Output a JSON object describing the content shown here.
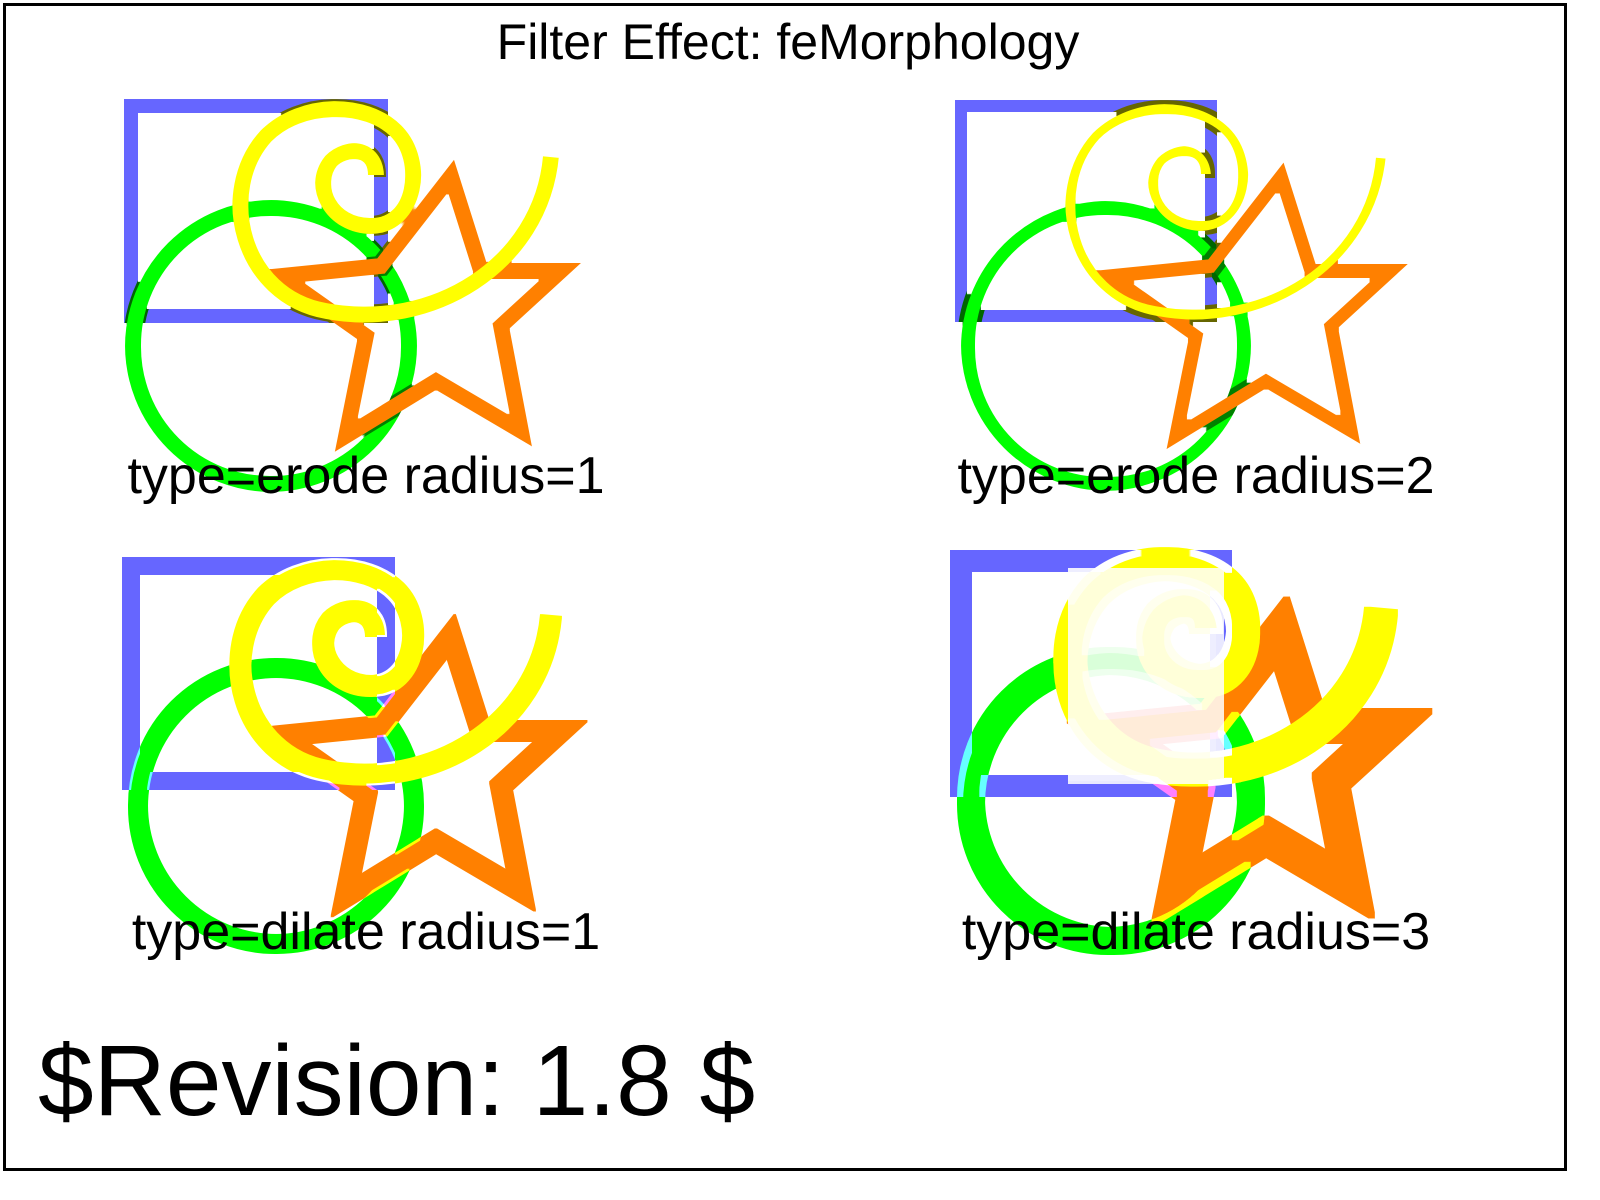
{
  "title": "Filter Effect: feMorphology",
  "panels": [
    {
      "id": "erode-1",
      "caption": "type=erode radius=1",
      "type": "erode",
      "radius": 1
    },
    {
      "id": "erode-2",
      "caption": "type=erode radius=2",
      "type": "erode",
      "radius": 2
    },
    {
      "id": "dilate-1",
      "caption": "type=dilate radius=1",
      "type": "dilate",
      "radius": 1
    },
    {
      "id": "dilate-3",
      "caption": "type=dilate radius=3",
      "type": "dilate",
      "radius": 3
    }
  ],
  "revision": "$Revision: 1.8 $",
  "colors": {
    "square": "#6666ff",
    "circle": "#00ff00",
    "star": "#ff8000",
    "spiral": "#ffff00",
    "border": "#000000"
  }
}
